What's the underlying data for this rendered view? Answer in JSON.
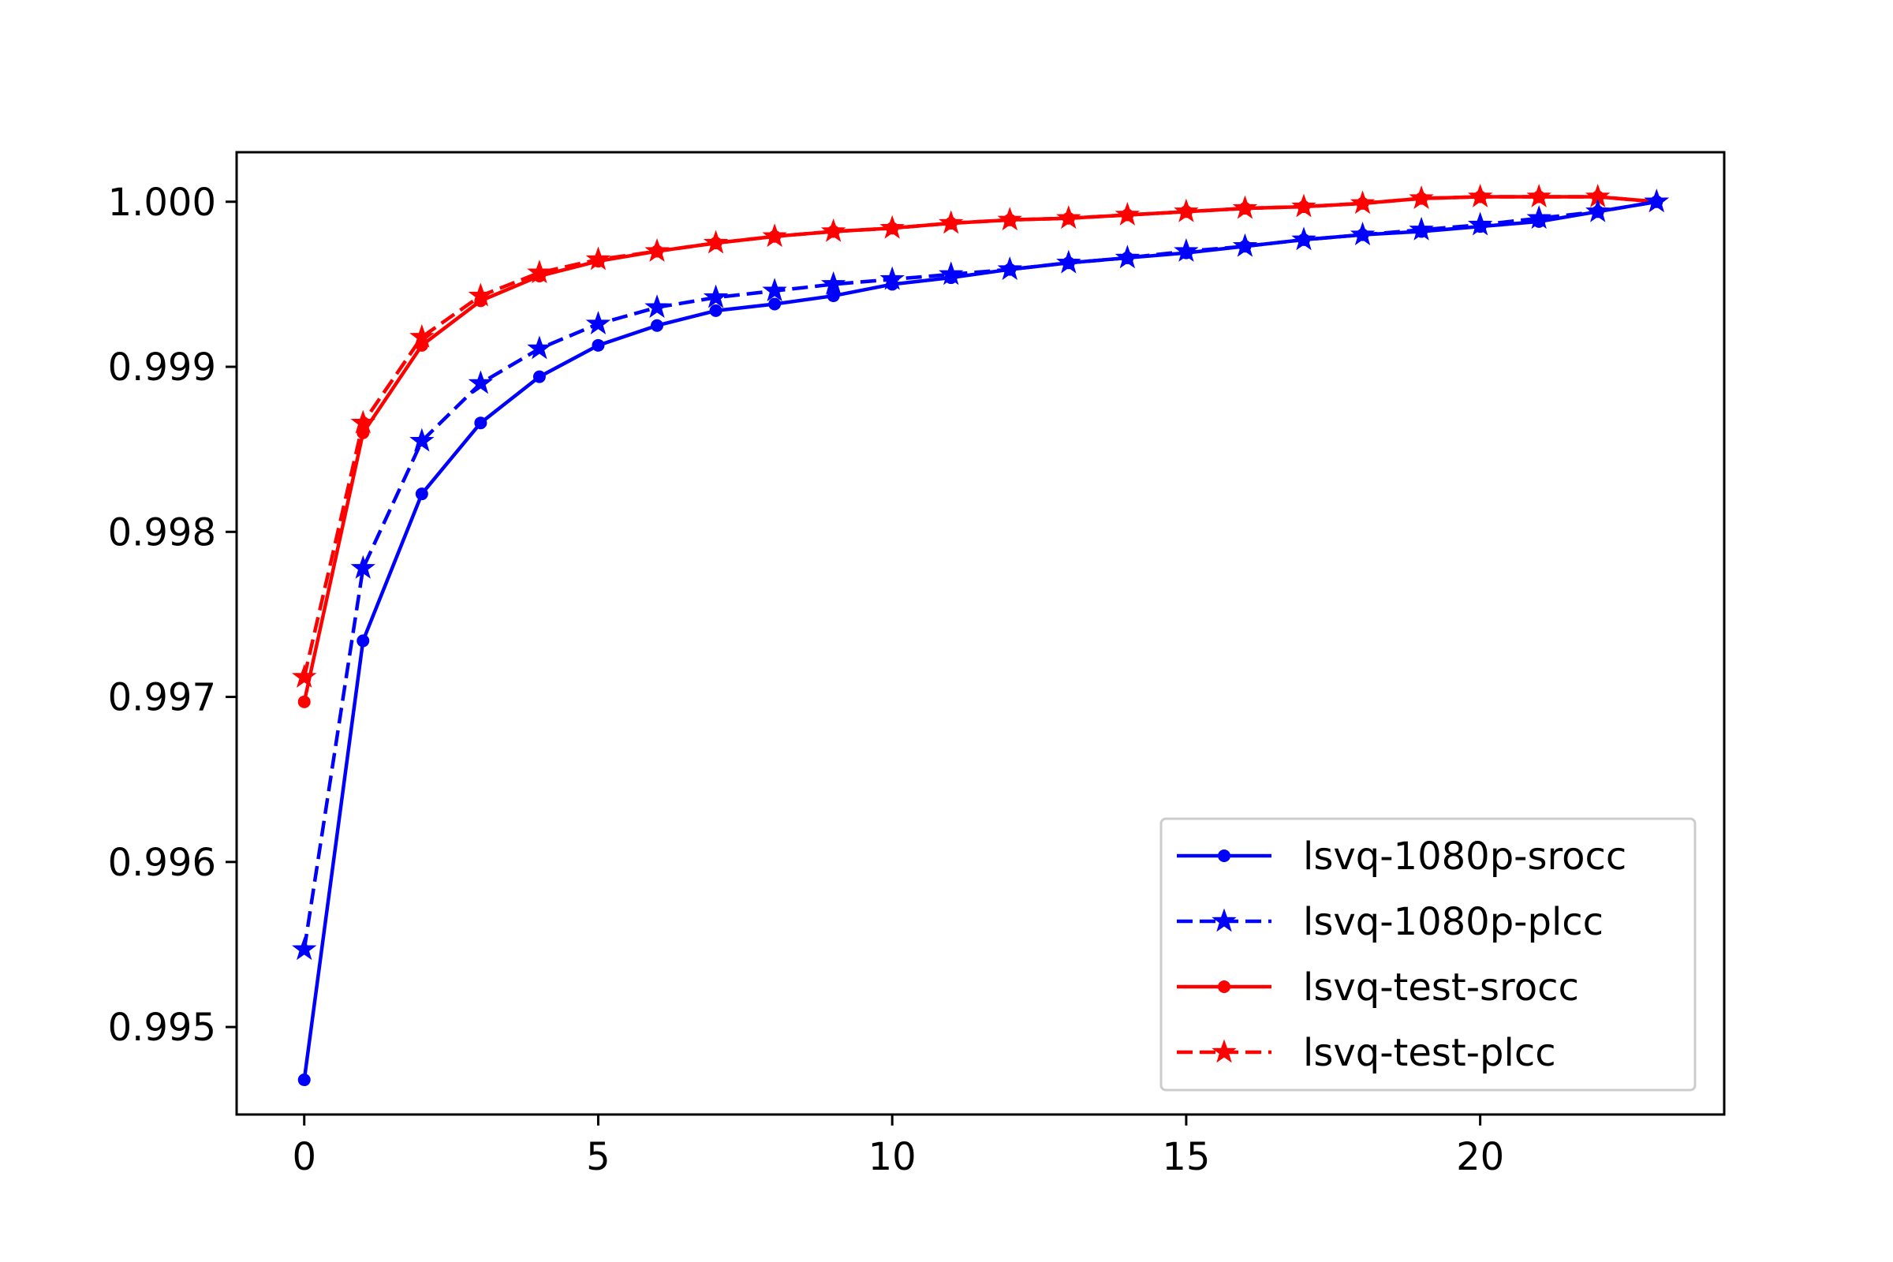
{
  "chart_data": {
    "type": "line",
    "title": "",
    "xlabel": "",
    "ylabel": "",
    "xlim": [
      -1.15,
      24.15
    ],
    "ylim": [
      0.99447,
      1.0003
    ],
    "xticks": [
      0,
      5,
      10,
      15,
      20
    ],
    "xtick_labels": [
      "0",
      "5",
      "10",
      "15",
      "20"
    ],
    "yticks": [
      0.995,
      0.996,
      0.997,
      0.998,
      0.999,
      1.0
    ],
    "ytick_labels": [
      "0.995",
      "0.996",
      "0.997",
      "0.998",
      "0.999",
      "1.000"
    ],
    "grid": false,
    "legend_position": "lower-right",
    "x": [
      0,
      1,
      2,
      3,
      4,
      5,
      6,
      7,
      8,
      9,
      10,
      11,
      12,
      13,
      14,
      15,
      16,
      17,
      18,
      19,
      20,
      21,
      22,
      23
    ],
    "series": [
      {
        "name": "lsvq-1080p-srocc",
        "color": "#0000ff",
        "line_style": "solid",
        "marker": "dot",
        "values": [
          0.99468,
          0.99734,
          0.99823,
          0.99866,
          0.99894,
          0.99913,
          0.99925,
          0.99934,
          0.99938,
          0.99943,
          0.9995,
          0.99954,
          0.99959,
          0.99963,
          0.99966,
          0.99969,
          0.99973,
          0.99977,
          0.9998,
          0.99982,
          0.99985,
          0.99988,
          0.99994,
          1.0
        ]
      },
      {
        "name": "lsvq-1080p-plcc",
        "color": "#0000ff",
        "line_style": "dashed",
        "marker": "star",
        "values": [
          0.99547,
          0.99778,
          0.99855,
          0.9989,
          0.99911,
          0.99926,
          0.99936,
          0.99942,
          0.99946,
          0.9995,
          0.99953,
          0.99956,
          0.99959,
          0.99963,
          0.99966,
          0.9997,
          0.99973,
          0.99977,
          0.9998,
          0.99983,
          0.99986,
          0.9999,
          0.99994,
          1.0
        ]
      },
      {
        "name": "lsvq-test-srocc",
        "color": "#ff0000",
        "line_style": "solid",
        "marker": "dot",
        "values": [
          0.99697,
          0.9986,
          0.99913,
          0.9994,
          0.99955,
          0.99964,
          0.9997,
          0.99975,
          0.99979,
          0.99982,
          0.99984,
          0.99987,
          0.99989,
          0.9999,
          0.99992,
          0.99994,
          0.99996,
          0.99997,
          0.99999,
          1.00002,
          1.00003,
          1.00003,
          1.00003,
          1.0
        ]
      },
      {
        "name": "lsvq-test-plcc",
        "color": "#ff0000",
        "line_style": "dashed",
        "marker": "star",
        "values": [
          0.99712,
          0.99866,
          0.99918,
          0.99943,
          0.99957,
          0.99965,
          0.9997,
          0.99975,
          0.99979,
          0.99982,
          0.99984,
          0.99987,
          0.99989,
          0.9999,
          0.99992,
          0.99994,
          0.99996,
          0.99997,
          0.99999,
          1.00002,
          1.00003,
          1.00003,
          1.00003,
          1.0
        ]
      }
    ]
  }
}
